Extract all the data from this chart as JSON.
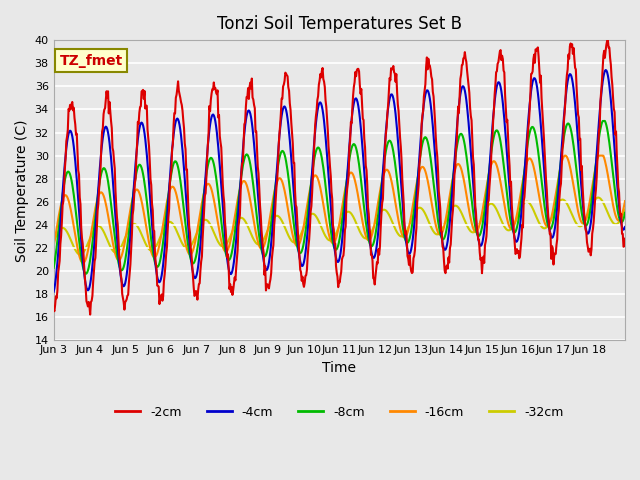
{
  "title": "Tonzi Soil Temperatures Set B",
  "xlabel": "Time",
  "ylabel": "Soil Temperature (C)",
  "annotation": "TZ_fmet",
  "ylim": [
    14,
    40
  ],
  "yticks": [
    14,
    16,
    18,
    20,
    22,
    24,
    26,
    28,
    30,
    32,
    34,
    36,
    38,
    40
  ],
  "xtick_positions": [
    0,
    1,
    2,
    3,
    4,
    5,
    6,
    7,
    8,
    9,
    10,
    11,
    12,
    13,
    14,
    15,
    16
  ],
  "xtick_labels": [
    "Jun 3",
    "Jun 4",
    "Jun 5",
    "Jun 6",
    "Jun 7",
    "Jun 8",
    "Jun 9",
    "Jun 10",
    "Jun 11",
    "Jun 12",
    "Jun 13",
    "Jun 14",
    "Jun 15",
    "Jun 16",
    "Jun 17",
    "Jun 18",
    ""
  ],
  "xlim": [
    0,
    16
  ],
  "series_colors": [
    "#dd0000",
    "#0000cc",
    "#00bb00",
    "#ff8800",
    "#cccc00"
  ],
  "series_lw": [
    1.5,
    1.5,
    1.5,
    1.5,
    1.5
  ],
  "legend_labels": [
    "-2cm",
    "-4cm",
    "-8cm",
    "-16cm",
    "-32cm"
  ],
  "bg_color": "#e8e8e8",
  "annotation_bg": "#ffffcc",
  "annotation_border": "#888800"
}
